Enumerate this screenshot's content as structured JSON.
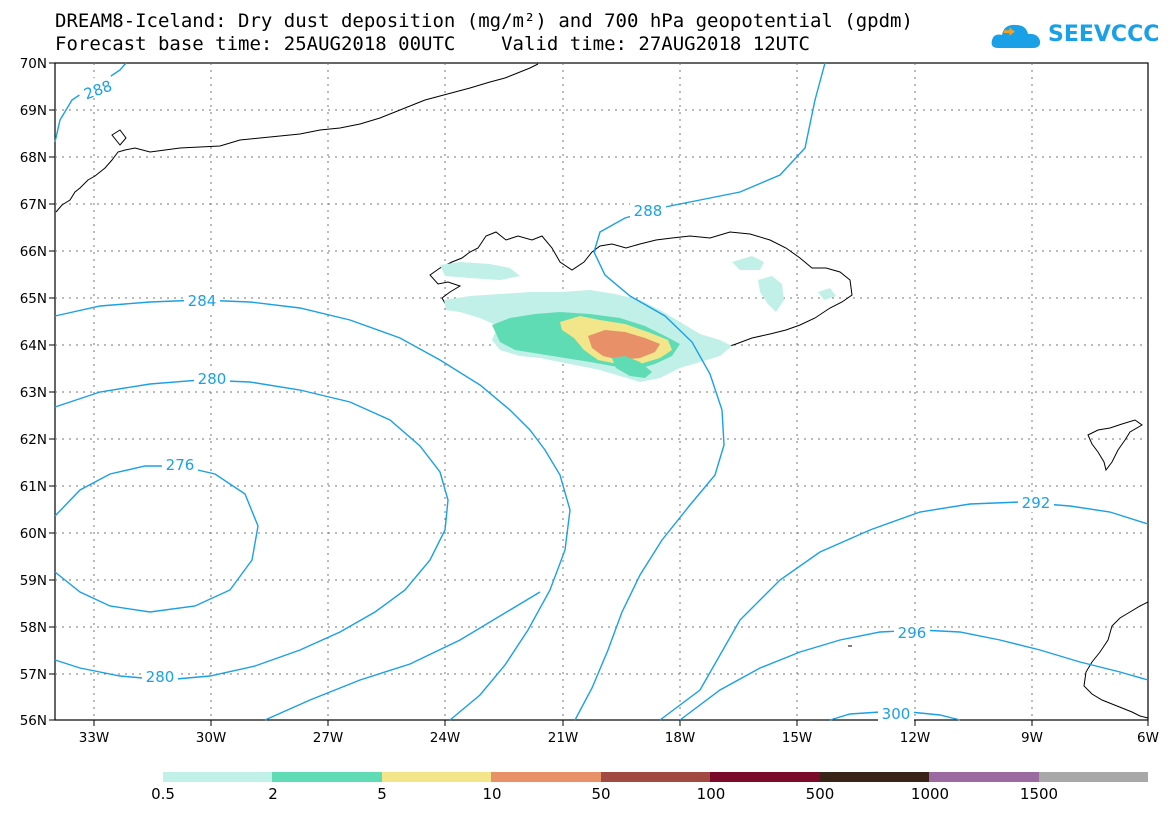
{
  "title": {
    "line1": "DREAM8-Iceland: Dry dust deposition (mg/m²) and 700 hPa geopotential (gpdm)",
    "line2": "Forecast base time: 25AUG2018 00UTC    Valid time: 27AUG2018 12UTC"
  },
  "logo": {
    "text": "SEEVCCC",
    "icon": "cloud-icon",
    "color": "#1aa0e6"
  },
  "map": {
    "lat_labels": [
      "70N",
      "69N",
      "68N",
      "67N",
      "66N",
      "65N",
      "64N",
      "63N",
      "62N",
      "61N",
      "60N",
      "59N",
      "58N",
      "57N",
      "56N"
    ],
    "lon_labels": [
      "33W",
      "30W",
      "27W",
      "24W",
      "21W",
      "18W",
      "15W",
      "12W",
      "9W",
      "6W"
    ],
    "contour_color": "#1aa0e6",
    "contour_labels": [
      "288",
      "288",
      "284",
      "280",
      "276",
      "280",
      "292",
      "296",
      "300"
    ]
  },
  "legend": {
    "colors": [
      "#c0f0e8",
      "#5fdcb4",
      "#f3e58a",
      "#e89068",
      "#a04a42",
      "#7a0a2a",
      "#3a2418",
      "#9a6aa0",
      "#a8a8a8"
    ],
    "labels": [
      "0.5",
      "2",
      "5",
      "10",
      "50",
      "100",
      "500",
      "1000",
      "1500"
    ]
  }
}
